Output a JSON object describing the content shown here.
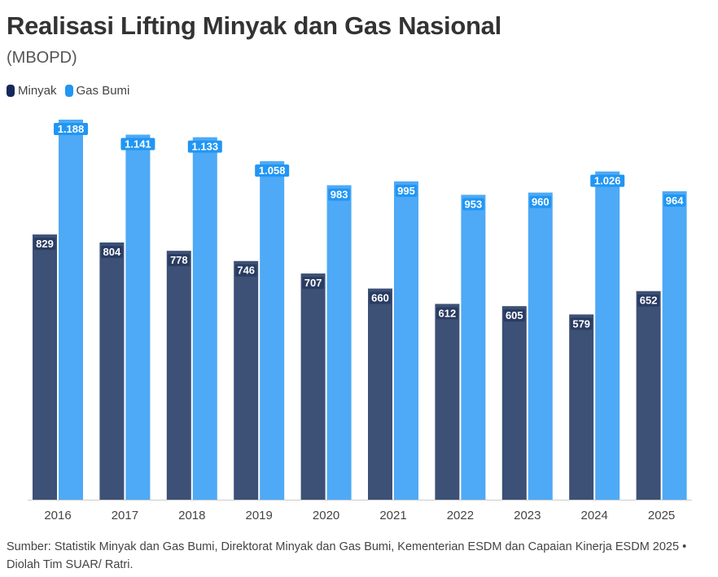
{
  "chart_data": {
    "type": "bar",
    "title": "Realisasi Lifting Minyak dan Gas Nasional",
    "subtitle": "(MBOPD)",
    "categories": [
      "2016",
      "2017",
      "2018",
      "2019",
      "2020",
      "2021",
      "2022",
      "2023",
      "2024",
      "2025"
    ],
    "series": [
      {
        "name": "Minyak",
        "color": "#3d5075",
        "legend_color": "#15295a",
        "label_bg": "#2a3c62",
        "values": [
          829,
          804,
          778,
          746,
          707,
          660,
          612,
          605,
          579,
          652
        ],
        "labels": [
          "829",
          "804",
          "778",
          "746",
          "707",
          "660",
          "612",
          "605",
          "579",
          "652"
        ]
      },
      {
        "name": "Gas Bumi",
        "color": "#4ea9f6",
        "legend_color": "#2196f3",
        "label_bg": "#2196f3",
        "values": [
          1188,
          1141,
          1133,
          1058,
          983,
          995,
          953,
          960,
          1026,
          964
        ],
        "labels": [
          "1.188",
          "1.141",
          "1.133",
          "1.058",
          "983",
          "995",
          "953",
          "960",
          "1.026",
          "964"
        ]
      }
    ],
    "ylim": [
      0,
      1188
    ],
    "grid": false,
    "legend": "top-left",
    "source": "Sumber: Statistik Minyak dan Gas Bumi, Direktorat Minyak dan Gas Bumi, Kementerian ESDM dan Capaian Kinerja ESDM 2025 • Diolah Tim SUAR/ Ratri."
  }
}
